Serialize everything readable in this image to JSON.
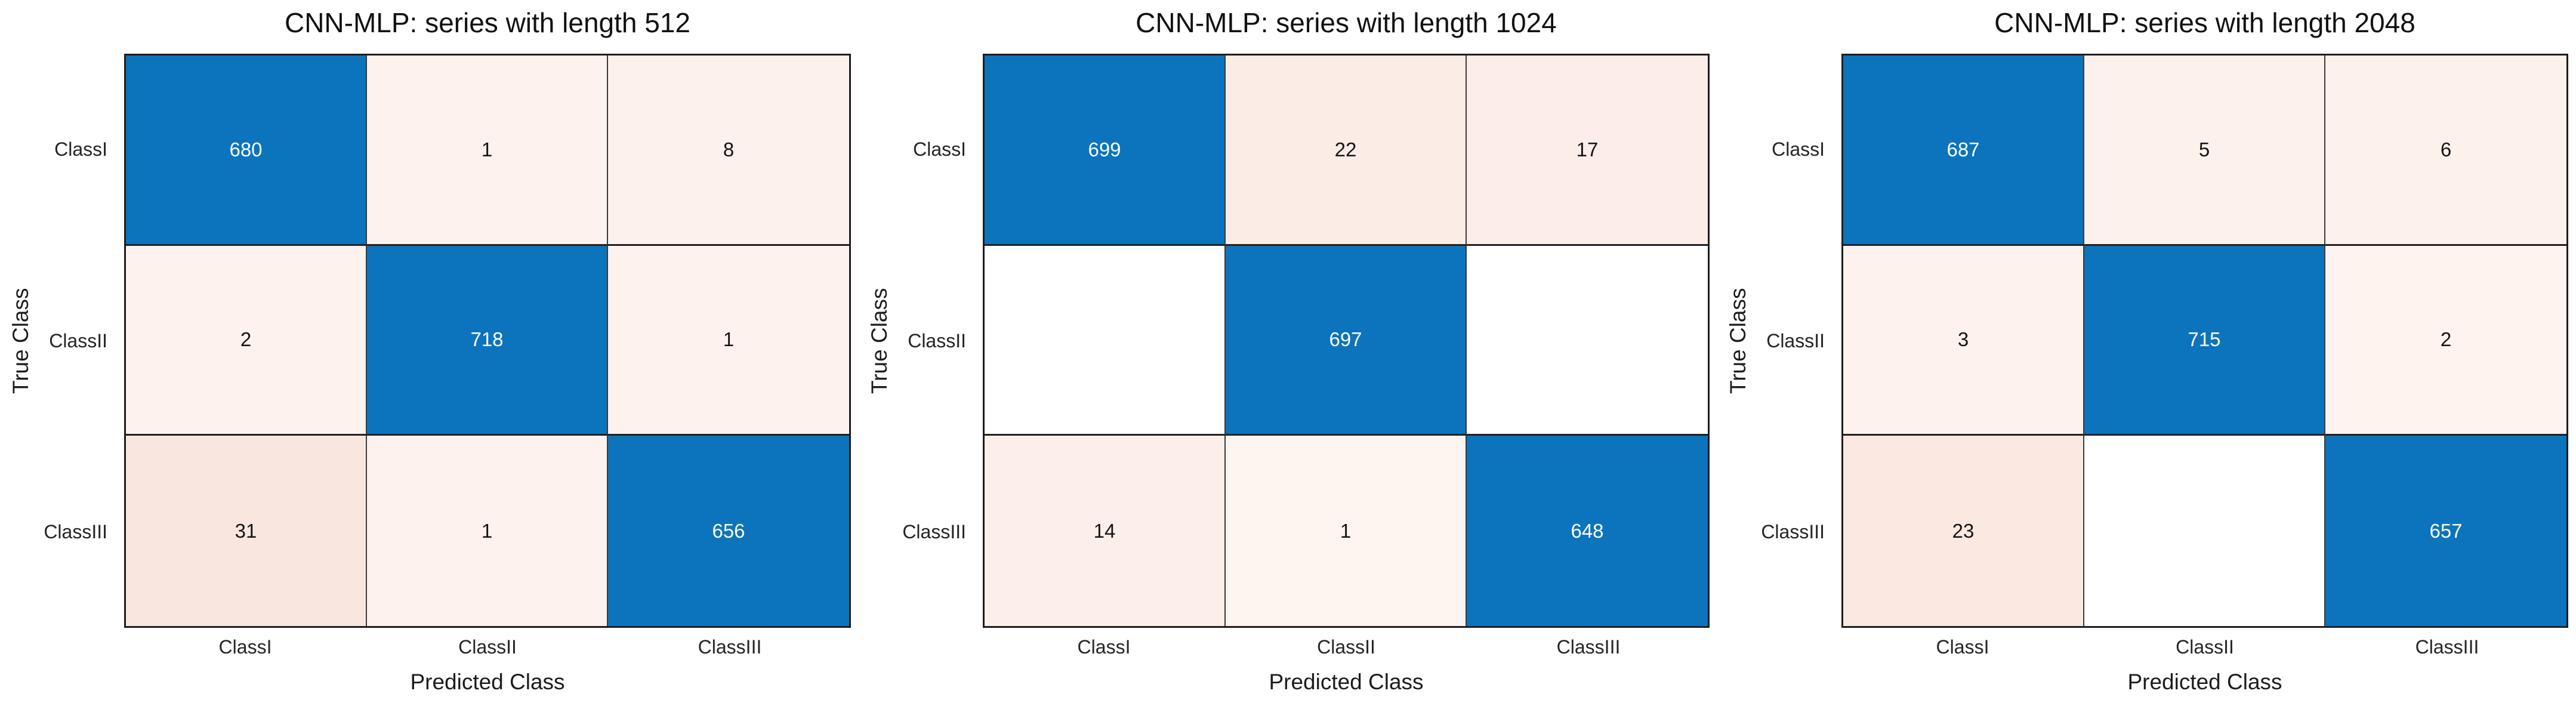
{
  "page": {
    "background": "#ffffff"
  },
  "colors": {
    "diagonal_blue": "#0C74BC",
    "zero_cell_white": "#ffffff",
    "outer_border": "#1f1c1c",
    "row_divider": "#221f1f",
    "col_divider": "#3d3a3a",
    "title_color": "#111111",
    "tick_color": "#262424",
    "axis_label_color": "#1c1c1c",
    "cell_text_on_blue": "#ffffff",
    "cell_text_on_light": "#141414"
  },
  "chart_data": [
    {
      "type": "heatmap",
      "title": "CNN-MLP: series with length 512",
      "xlabel": "Predicted Class",
      "ylabel": "True Class",
      "x_categories": [
        "ClassI",
        "ClassII",
        "ClassIII"
      ],
      "y_categories": [
        "ClassI",
        "ClassII",
        "ClassIII"
      ],
      "matrix": [
        [
          680,
          1,
          8
        ],
        [
          2,
          718,
          1
        ],
        [
          31,
          1,
          656
        ]
      ],
      "cell_display": [
        [
          "680",
          "1",
          "8"
        ],
        [
          "2",
          "718",
          "1"
        ],
        [
          "31",
          "1",
          "656"
        ]
      ],
      "cell_colors": [
        [
          "#0C74BC",
          "#FDF2EE",
          "#FDF1EC"
        ],
        [
          "#FDF2EE",
          "#0C74BC",
          "#FDF2EE"
        ],
        [
          "#F9E7DF",
          "#FDF2EE",
          "#0C74BC"
        ]
      ],
      "cell_text_colors": [
        [
          "#ffffff",
          "#141414",
          "#141414"
        ],
        [
          "#141414",
          "#ffffff",
          "#141414"
        ],
        [
          "#141414",
          "#141414",
          "#ffffff"
        ]
      ],
      "grid": "on",
      "legend": "none"
    },
    {
      "type": "heatmap",
      "title": "CNN-MLP: series with length 1024",
      "xlabel": "Predicted Class",
      "ylabel": "True Class",
      "x_categories": [
        "ClassI",
        "ClassII",
        "ClassIII"
      ],
      "y_categories": [
        "ClassI",
        "ClassII",
        "ClassIII"
      ],
      "matrix": [
        [
          699,
          22,
          17
        ],
        [
          0,
          697,
          0
        ],
        [
          14,
          1,
          648
        ]
      ],
      "cell_display": [
        [
          "699",
          "22",
          "17"
        ],
        [
          "",
          "697",
          ""
        ],
        [
          "14",
          "1",
          "648"
        ]
      ],
      "cell_colors": [
        [
          "#0C74BC",
          "#FBECE5",
          "#FCEDE8"
        ],
        [
          "#FFFFFF",
          "#0C74BC",
          "#FFFFFF"
        ],
        [
          "#FCEEE9",
          "#FEF4F0",
          "#0C74BC"
        ]
      ],
      "cell_text_colors": [
        [
          "#ffffff",
          "#141414",
          "#141414"
        ],
        [
          "#141414",
          "#ffffff",
          "#141414"
        ],
        [
          "#141414",
          "#141414",
          "#ffffff"
        ]
      ],
      "grid": "on",
      "legend": "none"
    },
    {
      "type": "heatmap",
      "title": "CNN-MLP: series with length 2048",
      "xlabel": "Predicted Class",
      "ylabel": "True Class",
      "x_categories": [
        "ClassI",
        "ClassII",
        "ClassIII"
      ],
      "y_categories": [
        "ClassI",
        "ClassII",
        "ClassIII"
      ],
      "matrix": [
        [
          687,
          5,
          6
        ],
        [
          3,
          715,
          2
        ],
        [
          23,
          0,
          657
        ]
      ],
      "cell_display": [
        [
          "687",
          "5",
          "6"
        ],
        [
          "3",
          "715",
          "2"
        ],
        [
          "23",
          "",
          "657"
        ]
      ],
      "cell_colors": [
        [
          "#0C74BC",
          "#FDF1EC",
          "#FDF1EC"
        ],
        [
          "#FDF2EE",
          "#0C74BC",
          "#FEF3EF"
        ],
        [
          "#FAE8E1",
          "#FFFFFF",
          "#0C74BC"
        ]
      ],
      "cell_text_colors": [
        [
          "#ffffff",
          "#141414",
          "#141414"
        ],
        [
          "#141414",
          "#ffffff",
          "#141414"
        ],
        [
          "#141414",
          "#141414",
          "#ffffff"
        ]
      ],
      "grid": "on",
      "legend": "none"
    }
  ]
}
